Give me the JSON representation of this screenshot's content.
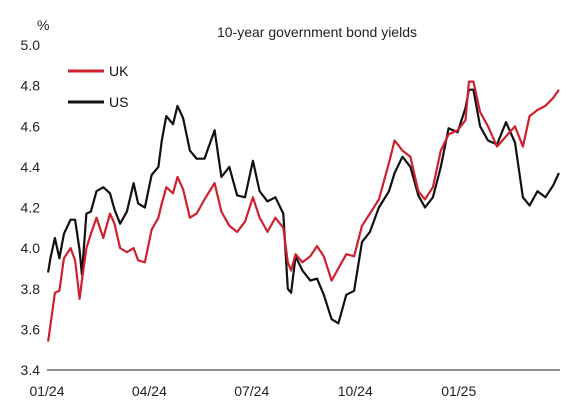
{
  "chart_data": {
    "type": "line",
    "title": "10-year government bond yields",
    "ylabel": "%",
    "xlabel": "",
    "ylim": [
      3.4,
      5.0
    ],
    "yticks": [
      "3.4",
      "3.6",
      "3.8",
      "4.0",
      "4.2",
      "4.4",
      "4.6",
      "4.8",
      "5.0"
    ],
    "xlim": [
      "2024-01-01",
      "2025-04-01"
    ],
    "xticks": [
      {
        "date": "2024-01-01",
        "label": "01/24"
      },
      {
        "date": "2024-04-01",
        "label": "04/24"
      },
      {
        "date": "2024-07-01",
        "label": "07/24"
      },
      {
        "date": "2024-10-01",
        "label": "10/24"
      },
      {
        "date": "2025-01-01",
        "label": "01/25"
      }
    ],
    "grid": false,
    "legend_position": "top-left",
    "series": [
      {
        "name": "UK",
        "color": "#d0202e",
        "x": [
          "2024-01-02",
          "2024-01-04",
          "2024-01-08",
          "2024-01-12",
          "2024-01-16",
          "2024-01-22",
          "2024-01-26",
          "2024-01-30",
          "2024-02-01",
          "2024-02-05",
          "2024-02-09",
          "2024-02-14",
          "2024-02-20",
          "2024-02-26",
          "2024-03-01",
          "2024-03-06",
          "2024-03-12",
          "2024-03-18",
          "2024-03-22",
          "2024-03-28",
          "2024-04-03",
          "2024-04-09",
          "2024-04-12",
          "2024-04-16",
          "2024-04-22",
          "2024-04-26",
          "2024-05-01",
          "2024-05-07",
          "2024-05-13",
          "2024-05-20",
          "2024-05-29",
          "2024-06-04",
          "2024-06-11",
          "2024-06-18",
          "2024-06-25",
          "2024-07-02",
          "2024-07-08",
          "2024-07-15",
          "2024-07-22",
          "2024-07-29",
          "2024-08-02",
          "2024-08-05",
          "2024-08-09",
          "2024-08-15",
          "2024-08-22",
          "2024-08-28",
          "2024-09-03",
          "2024-09-10",
          "2024-09-16",
          "2024-09-23",
          "2024-09-30",
          "2024-10-07",
          "2024-10-14",
          "2024-10-22",
          "2024-10-31",
          "2024-11-05",
          "2024-11-12",
          "2024-11-19",
          "2024-11-26",
          "2024-12-02",
          "2024-12-09",
          "2024-12-16",
          "2024-12-23",
          "2024-12-31",
          "2025-01-07",
          "2025-01-10",
          "2025-01-14",
          "2025-01-20",
          "2025-01-27",
          "2025-02-04",
          "2025-02-12",
          "2025-02-20",
          "2025-02-27",
          "2025-03-05",
          "2025-03-12",
          "2025-03-19",
          "2025-03-26",
          "2025-03-31"
        ],
        "values": [
          3.54,
          3.62,
          3.78,
          3.79,
          3.95,
          4.0,
          3.94,
          3.75,
          3.84,
          4.0,
          4.07,
          4.15,
          4.05,
          4.17,
          4.12,
          4.0,
          3.98,
          4.0,
          3.94,
          3.93,
          4.09,
          4.15,
          4.22,
          4.3,
          4.27,
          4.35,
          4.29,
          4.15,
          4.17,
          4.24,
          4.32,
          4.18,
          4.11,
          4.08,
          4.13,
          4.25,
          4.15,
          4.08,
          4.15,
          4.1,
          3.93,
          3.89,
          3.97,
          3.93,
          3.96,
          4.01,
          3.96,
          3.84,
          3.9,
          3.97,
          3.96,
          4.11,
          4.17,
          4.24,
          4.42,
          4.53,
          4.48,
          4.45,
          4.28,
          4.24,
          4.3,
          4.48,
          4.56,
          4.58,
          4.63,
          4.82,
          4.82,
          4.67,
          4.6,
          4.5,
          4.55,
          4.6,
          4.5,
          4.65,
          4.68,
          4.7,
          4.74,
          4.78
        ]
      },
      {
        "name": "US",
        "color": "#111111",
        "x": [
          "2024-01-02",
          "2024-01-04",
          "2024-01-08",
          "2024-01-12",
          "2024-01-16",
          "2024-01-22",
          "2024-01-26",
          "2024-01-30",
          "2024-02-01",
          "2024-02-05",
          "2024-02-09",
          "2024-02-14",
          "2024-02-20",
          "2024-02-26",
          "2024-03-01",
          "2024-03-06",
          "2024-03-12",
          "2024-03-18",
          "2024-03-22",
          "2024-03-28",
          "2024-04-03",
          "2024-04-09",
          "2024-04-12",
          "2024-04-16",
          "2024-04-22",
          "2024-04-26",
          "2024-05-01",
          "2024-05-07",
          "2024-05-13",
          "2024-05-20",
          "2024-05-29",
          "2024-06-04",
          "2024-06-11",
          "2024-06-18",
          "2024-06-25",
          "2024-07-02",
          "2024-07-08",
          "2024-07-15",
          "2024-07-22",
          "2024-07-29",
          "2024-08-02",
          "2024-08-05",
          "2024-08-09",
          "2024-08-15",
          "2024-08-22",
          "2024-08-28",
          "2024-09-03",
          "2024-09-10",
          "2024-09-16",
          "2024-09-23",
          "2024-09-30",
          "2024-10-07",
          "2024-10-14",
          "2024-10-22",
          "2024-10-31",
          "2024-11-05",
          "2024-11-12",
          "2024-11-19",
          "2024-11-26",
          "2024-12-02",
          "2024-12-09",
          "2024-12-16",
          "2024-12-23",
          "2024-12-31",
          "2025-01-07",
          "2025-01-10",
          "2025-01-14",
          "2025-01-20",
          "2025-01-27",
          "2025-02-04",
          "2025-02-12",
          "2025-02-20",
          "2025-02-27",
          "2025-03-05",
          "2025-03-12",
          "2025-03-19",
          "2025-03-26",
          "2025-03-31"
        ],
        "values": [
          3.88,
          3.95,
          4.05,
          3.95,
          4.07,
          4.14,
          4.14,
          3.99,
          3.87,
          4.17,
          4.18,
          4.28,
          4.3,
          4.27,
          4.19,
          4.12,
          4.18,
          4.32,
          4.22,
          4.2,
          4.36,
          4.4,
          4.53,
          4.65,
          4.61,
          4.7,
          4.64,
          4.48,
          4.44,
          4.44,
          4.58,
          4.35,
          4.4,
          4.26,
          4.25,
          4.43,
          4.28,
          4.23,
          4.25,
          4.17,
          3.8,
          3.78,
          3.96,
          3.89,
          3.84,
          3.85,
          3.77,
          3.65,
          3.63,
          3.77,
          3.79,
          4.03,
          4.08,
          4.2,
          4.28,
          4.37,
          4.45,
          4.4,
          4.26,
          4.2,
          4.25,
          4.4,
          4.59,
          4.57,
          4.69,
          4.78,
          4.78,
          4.6,
          4.53,
          4.51,
          4.62,
          4.52,
          4.25,
          4.21,
          4.28,
          4.25,
          4.31,
          4.37
        ]
      }
    ]
  }
}
